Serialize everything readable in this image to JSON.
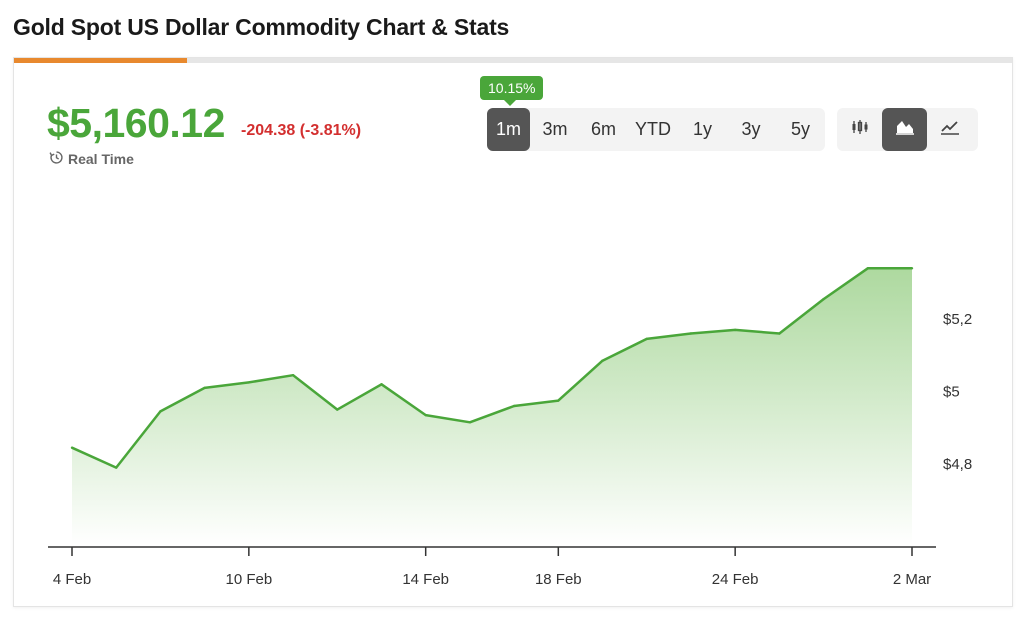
{
  "page": {
    "title": "Gold Spot US Dollar Commodity Chart & Stats"
  },
  "quote": {
    "price": "$5,160.12",
    "change": "-204.38 (-3.81%)",
    "realtime_label": "Real Time"
  },
  "period_tooltip": "10.15%",
  "ranges": [
    "1m",
    "3m",
    "6m",
    "YTD",
    "1y",
    "3y",
    "5y"
  ],
  "active_range": "1m",
  "chart_types": [
    {
      "icon": "candlestick-icon",
      "active": false
    },
    {
      "icon": "area-chart-icon",
      "active": true
    },
    {
      "icon": "line-chart-icon",
      "active": false
    }
  ],
  "colors": {
    "accent": "#e8892e",
    "up": "#4aa63a",
    "down": "#d32f2f",
    "line": "#4aa63a",
    "area_top": "#a9d79a",
    "area_bottom": "#ffffff"
  },
  "chart_data": {
    "type": "area",
    "title": "",
    "xlabel": "",
    "ylabel": "",
    "x": [
      "4 Feb",
      "5 Feb",
      "6 Feb",
      "9 Feb",
      "10 Feb",
      "11 Feb",
      "12 Feb",
      "13 Feb",
      "14 Feb",
      "16 Feb",
      "17 Feb",
      "18 Feb",
      "19 Feb",
      "20 Feb",
      "23 Feb",
      "24 Feb",
      "25 Feb",
      "26 Feb",
      "27 Feb",
      "2 Mar"
    ],
    "series": [
      {
        "values": [
          4.845,
          4.79,
          4.945,
          5.01,
          5.025,
          5.045,
          4.95,
          5.02,
          4.935,
          4.915,
          4.96,
          4.975,
          5.085,
          5.145,
          5.16,
          5.17,
          5.16,
          5.255,
          5.34,
          5.34
        ]
      }
    ],
    "x_ticks": [
      "4 Feb",
      "10 Feb",
      "14 Feb",
      "18 Feb",
      "24 Feb",
      "2 Mar"
    ],
    "y_ticks": [
      {
        "value": 5.2,
        "label": "$5,2"
      },
      {
        "value": 5.0,
        "label": "$5"
      },
      {
        "value": 4.8,
        "label": "$4,8"
      }
    ],
    "ylim": [
      4.6,
      5.4
    ],
    "grid": false,
    "legend": "none"
  }
}
